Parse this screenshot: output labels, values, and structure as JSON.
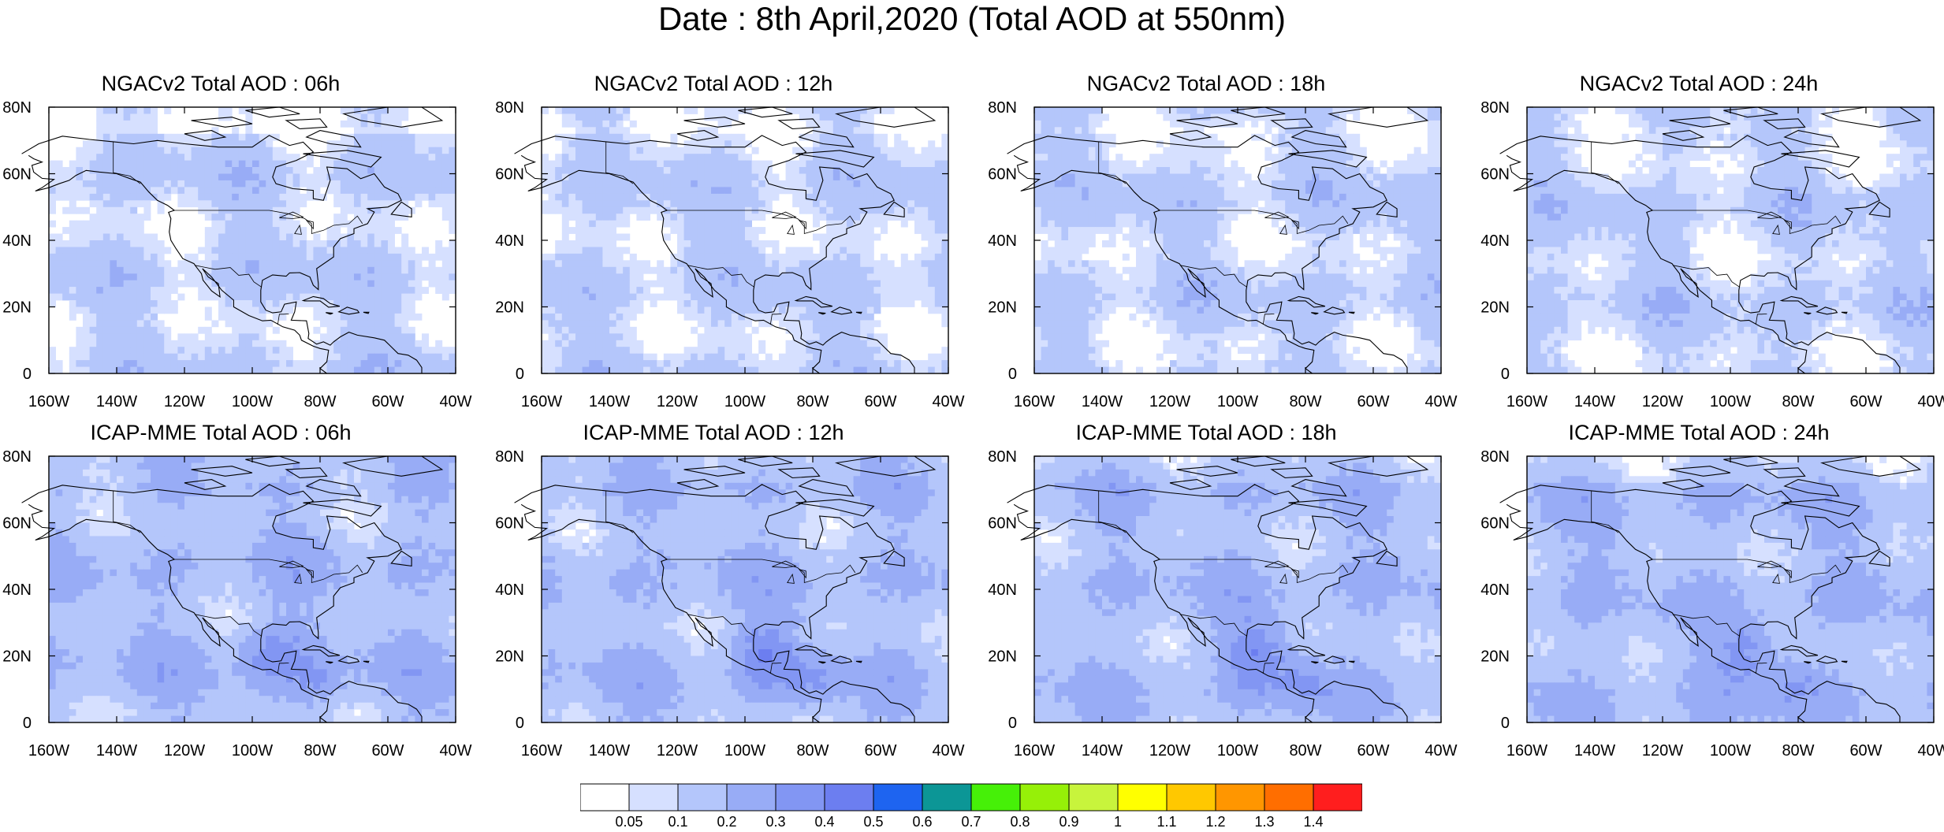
{
  "title": "Date : 8th April,2020 (Total AOD at 550nm)",
  "axes": {
    "lat_ticks": [
      "80N",
      "60N",
      "40N",
      "20N",
      "0"
    ],
    "lon_ticks": [
      "160W",
      "140W",
      "120W",
      "100W",
      "80W",
      "60W",
      "40W"
    ],
    "lat_range": [
      0,
      80
    ],
    "lon_range": [
      -160,
      -40
    ]
  },
  "panels": [
    {
      "title": "NGACv2 Total AOD : 06h",
      "model": "NGACv2",
      "hour": "06h",
      "plume_level": 0
    },
    {
      "title": "NGACv2 Total AOD : 12h",
      "model": "NGACv2",
      "hour": "12h",
      "plume_level": 0
    },
    {
      "title": "NGACv2 Total AOD : 18h",
      "model": "NGACv2",
      "hour": "18h",
      "plume_level": 0
    },
    {
      "title": "NGACv2 Total AOD : 24h",
      "model": "NGACv2",
      "hour": "24h",
      "plume_level": 0
    },
    {
      "title": "ICAP-MME Total AOD : 06h",
      "model": "ICAP-MME",
      "hour": "06h",
      "plume_level": 1
    },
    {
      "title": "ICAP-MME Total AOD : 12h",
      "model": "ICAP-MME",
      "hour": "12h",
      "plume_level": 1
    },
    {
      "title": "ICAP-MME Total AOD : 18h",
      "model": "ICAP-MME",
      "hour": "18h",
      "plume_level": 1
    },
    {
      "title": "ICAP-MME Total AOD : 24h",
      "model": "ICAP-MME",
      "hour": "24h",
      "plume_level": 1
    }
  ],
  "colorbar": {
    "labels": [
      "0.05",
      "0.1",
      "0.2",
      "0.3",
      "0.4",
      "0.5",
      "0.6",
      "0.7",
      "0.8",
      "0.9",
      "1",
      "1.1",
      "1.2",
      "1.3",
      "1.4"
    ],
    "colors": [
      "#ffffff",
      "#d6e0ff",
      "#b4c6fb",
      "#98acf6",
      "#8296f3",
      "#6c7ef0",
      "#1e64f0",
      "#0c9696",
      "#46f008",
      "#96f008",
      "#c8f43c",
      "#ffff00",
      "#ffc800",
      "#ff9600",
      "#ff6e00",
      "#ff1e1e"
    ]
  }
}
